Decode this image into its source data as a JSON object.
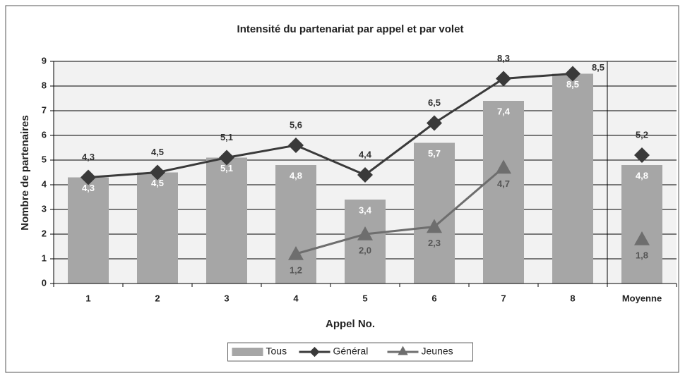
{
  "chart_data": {
    "type": "combo",
    "title": "Intensité du partenariat par appel et par volet",
    "x_label": "Appel No.",
    "y_label": "Nombre de partenaires",
    "categories": [
      "1",
      "2",
      "3",
      "4",
      "5",
      "6",
      "7",
      "8",
      "Moyenne"
    ],
    "ylim": [
      0,
      9
    ],
    "yticks": [
      0,
      1,
      2,
      3,
      4,
      5,
      6,
      7,
      8,
      9
    ],
    "grid": true,
    "legend": "bottom",
    "series": [
      {
        "name": "Tous",
        "type": "bar",
        "color": "#a6a6a6",
        "values": [
          4.3,
          4.5,
          5.1,
          4.8,
          3.4,
          5.7,
          7.4,
          8.5,
          4.8
        ],
        "value_labels": [
          "4,3",
          "4,5",
          "5,1",
          "4,8",
          "3,4",
          "5,7",
          "7,4",
          "8,5",
          "4,8"
        ]
      },
      {
        "name": "Général",
        "type": "line",
        "marker": "diamond",
        "color": "#3a3a3a",
        "values": [
          4.3,
          4.5,
          5.1,
          5.6,
          4.4,
          6.5,
          8.3,
          8.5,
          5.2
        ],
        "value_labels": [
          "4,3",
          "4,5",
          "5,1",
          "5,6",
          "4,4",
          "6,5",
          "8,3",
          "8,5",
          "5,2"
        ]
      },
      {
        "name": "Jeunes",
        "type": "line",
        "marker": "triangle",
        "color": "#6e6e6e",
        "values": [
          null,
          null,
          null,
          1.2,
          2.0,
          2.3,
          4.7,
          null,
          1.8
        ],
        "value_labels": [
          null,
          null,
          null,
          "1,2",
          "2,0",
          "2,3",
          "4,7",
          null,
          "1,8"
        ]
      }
    ]
  }
}
